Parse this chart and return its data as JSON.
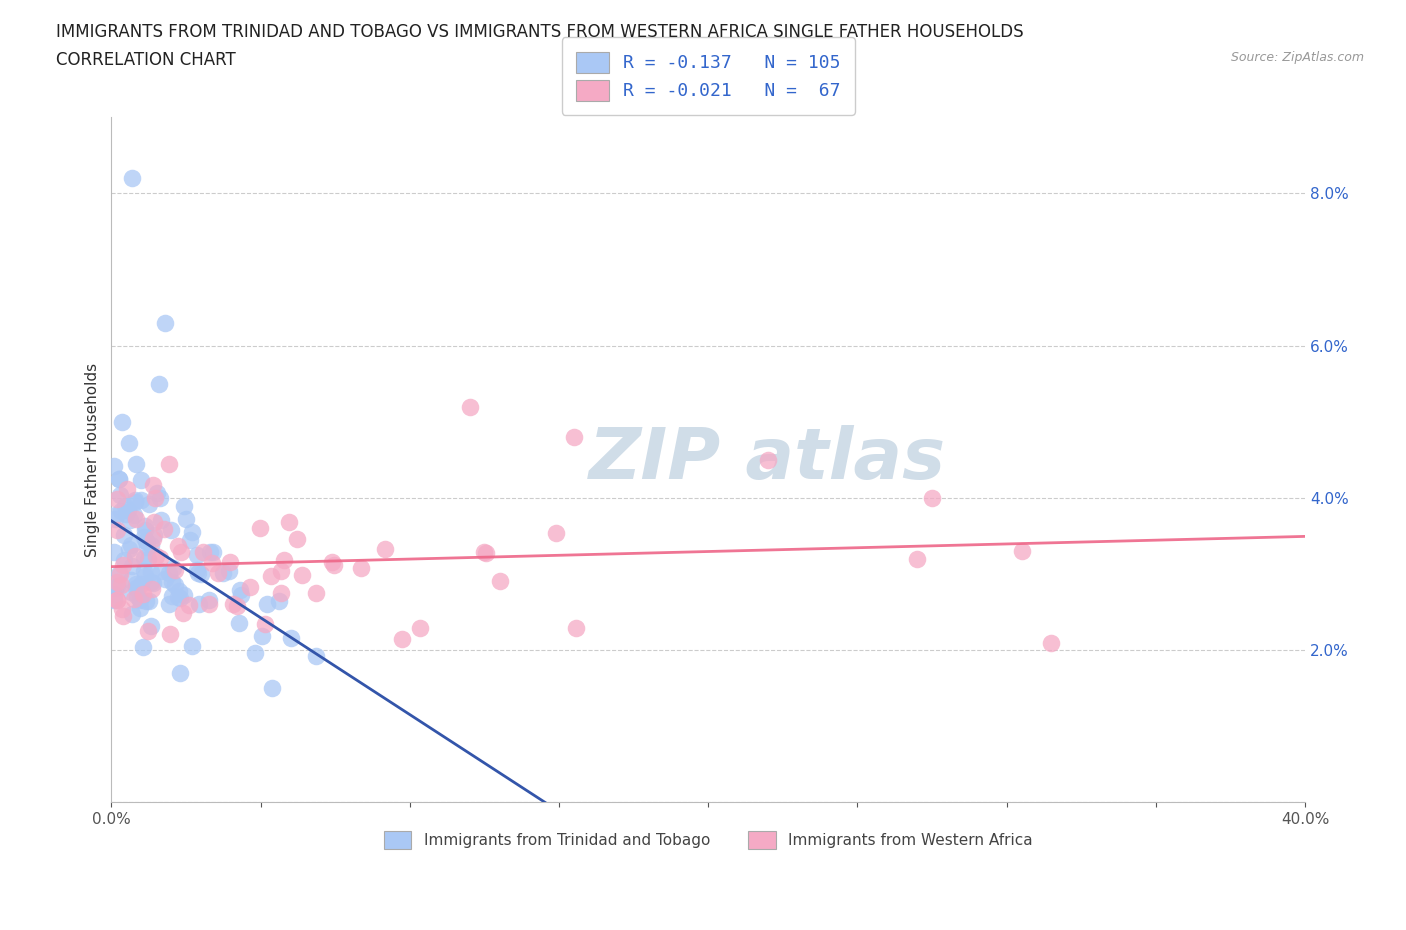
{
  "title_line1": "IMMIGRANTS FROM TRINIDAD AND TOBAGO VS IMMIGRANTS FROM WESTERN AFRICA SINGLE FATHER HOUSEHOLDS",
  "title_line2": "CORRELATION CHART",
  "source": "Source: ZipAtlas.com",
  "ylabel": "Single Father Households",
  "xlim": [
    0.0,
    0.4
  ],
  "ylim": [
    0.0,
    0.09
  ],
  "R1": -0.137,
  "N1": 105,
  "R2": -0.021,
  "N2": 67,
  "color1": "#aac8f5",
  "color2": "#f5aac5",
  "line1_solid_color": "#3355aa",
  "line1_dash_color": "#7799cc",
  "line2_color": "#ee6688",
  "watermark_color": "#d0dde8",
  "background_color": "#ffffff",
  "grid_color": "#cccccc",
  "title_fontsize": 12,
  "subtitle_fontsize": 12,
  "axis_label_fontsize": 11,
  "tick_fontsize": 11,
  "legend_color": "#3366cc"
}
